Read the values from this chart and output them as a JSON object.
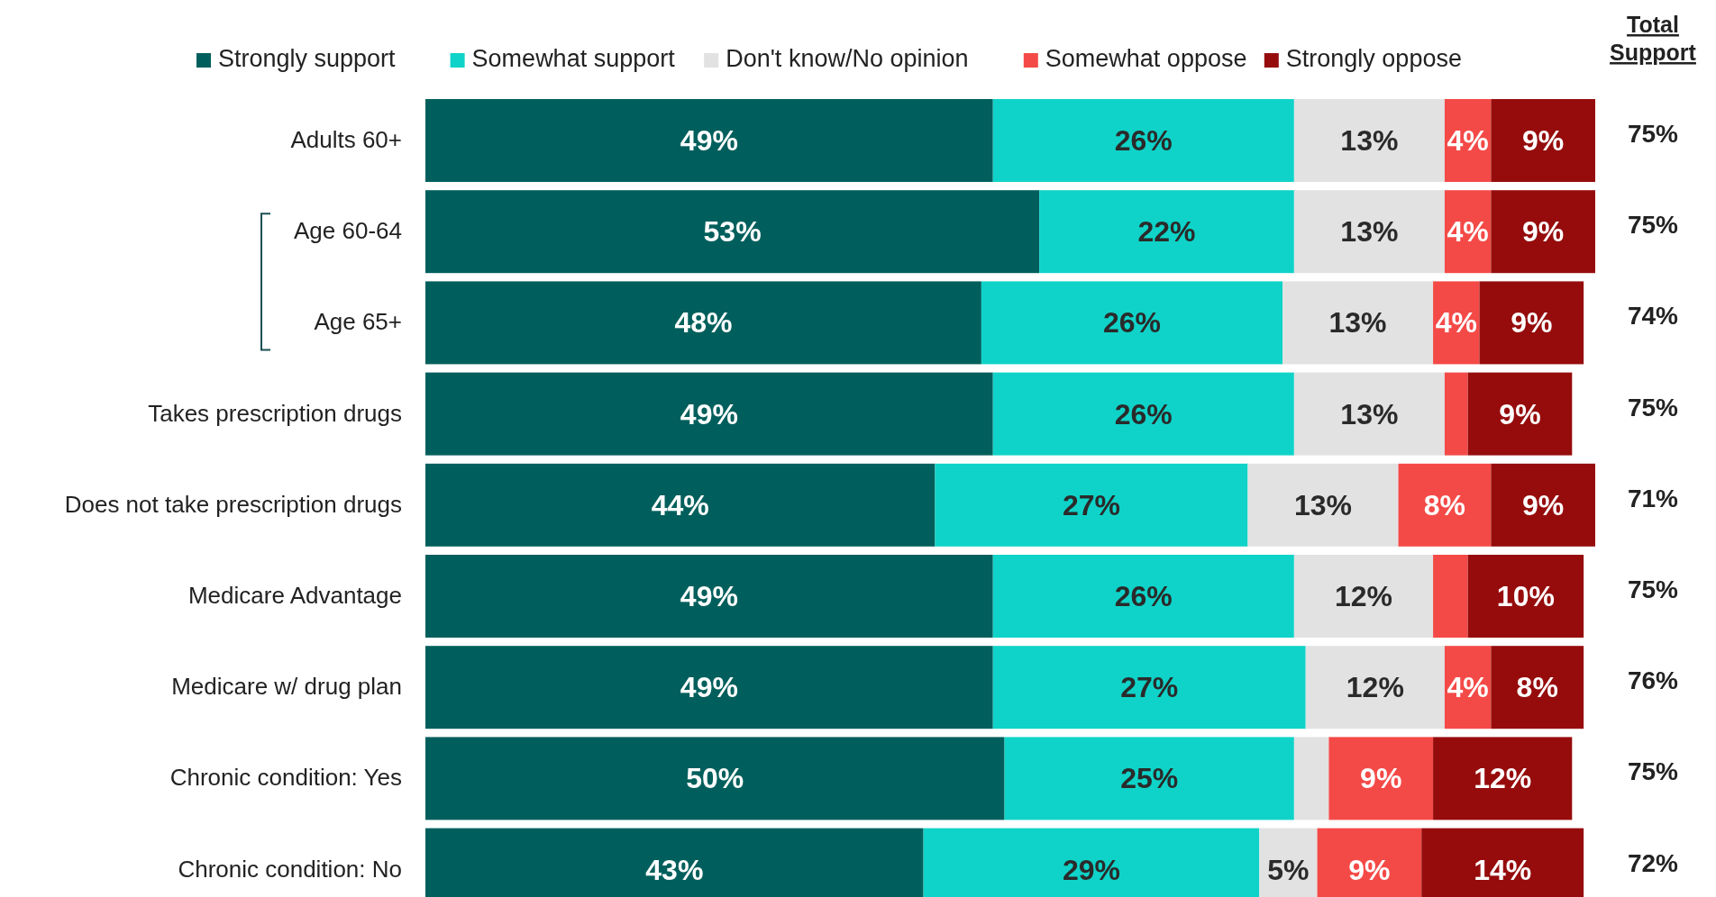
{
  "chart_data": {
    "type": "bar",
    "orientation": "horizontal",
    "stacked": true,
    "legend": "top",
    "data_labels": false,
    "categories": [
      "Adults 60+",
      "Age 60-64",
      "Age 65+",
      "Takes prescription drugs",
      "Does not take prescription drugs",
      "Medicare Advantage",
      "Medicare w/ drug plan",
      "Chronic condition: Yes",
      "Chronic condition: No"
    ],
    "series": [
      {
        "name": "Strongly support",
        "color": "#005f5c",
        "values": [
          49,
          53,
          48,
          49,
          44,
          49,
          49,
          50,
          43
        ],
        "value_labels": [
          "49%",
          "53%",
          "48%",
          "49%",
          "44%",
          "49%",
          "49%",
          "50%",
          "43%"
        ]
      },
      {
        "name": "Somewhat support",
        "color": "#0fd3c8",
        "values": [
          26,
          22,
          26,
          26,
          27,
          26,
          27,
          25,
          29
        ],
        "value_labels": [
          "26%",
          "22%",
          "26%",
          "26%",
          "27%",
          "26%",
          "27%",
          "25%",
          "29%"
        ]
      },
      {
        "name": "Don't know/No opinion",
        "color": "#e2e2e2",
        "values": [
          13,
          13,
          13,
          13,
          13,
          12,
          12,
          3,
          5
        ],
        "value_labels": [
          "13%",
          "13%",
          "13%",
          "13%",
          "13%",
          "12%",
          "12%",
          null,
          "5%"
        ]
      },
      {
        "name": "Somewhat oppose",
        "color": "#f44a47",
        "values": [
          4,
          4,
          4,
          2,
          8,
          3,
          4,
          9,
          9
        ],
        "value_labels": [
          "4%",
          "4%",
          "4%",
          null,
          "8%",
          null,
          "4%",
          "9%",
          "9%"
        ]
      },
      {
        "name": "Strongly oppose",
        "color": "#960c0c",
        "values": [
          9,
          9,
          9,
          9,
          9,
          10,
          8,
          12,
          14
        ],
        "value_labels": [
          "9%",
          "9%",
          "9%",
          "9%",
          "9%",
          "10%",
          "8%",
          "12%",
          "14%"
        ]
      }
    ],
    "annotations": [
      "Total Support",
      "75%",
      "75%",
      "74%",
      "75%",
      "71%",
      "75%",
      "76%",
      "75%",
      "72%"
    ]
  }
}
